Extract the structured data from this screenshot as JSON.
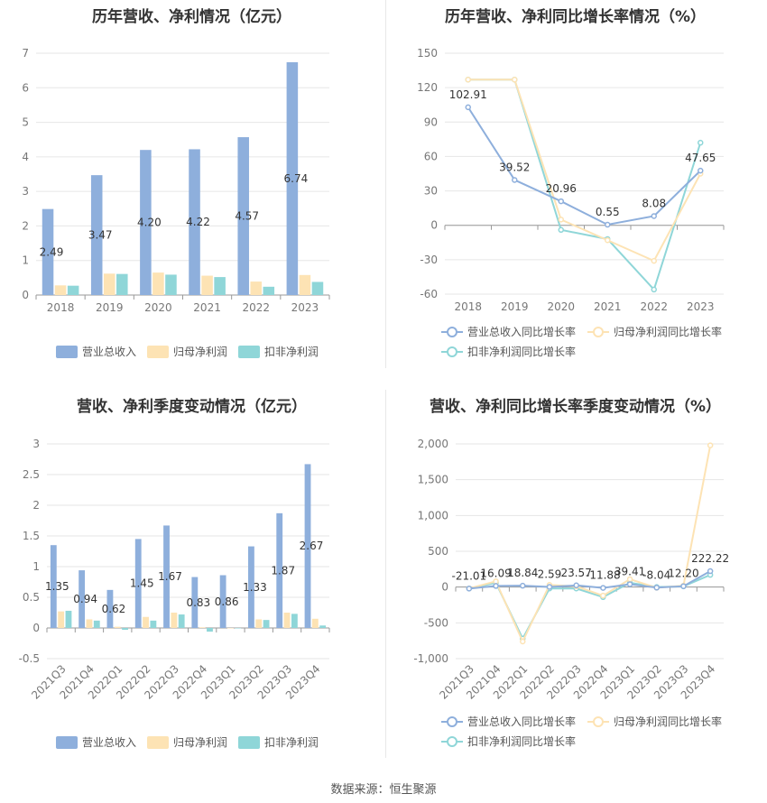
{
  "colors": {
    "revenue": "#8eafdc",
    "parent_profit": "#fde3b4",
    "deducted_profit": "#8fd6d8",
    "grid": "#e6e6e6",
    "axis_text": "#777777"
  },
  "footer": "数据来源：恒生聚源",
  "legend_bar": [
    "营业总收入",
    "归母净利润",
    "扣非净利润"
  ],
  "legend_line": [
    "营业总收入同比增长率",
    "归母净利润同比增长率",
    "扣非净利润同比增长率"
  ],
  "chart_data": [
    {
      "type": "bar",
      "title": "历年营收、净利情况（亿元）",
      "categories": [
        "2018",
        "2019",
        "2020",
        "2021",
        "2022",
        "2023"
      ],
      "ylim": [
        0,
        7
      ],
      "yticks": [
        0,
        1,
        2,
        3,
        4,
        5,
        6,
        7
      ],
      "series": [
        {
          "name": "营业总收入",
          "values": [
            2.49,
            3.47,
            4.2,
            4.22,
            4.57,
            6.74
          ]
        },
        {
          "name": "归母净利润",
          "values": [
            0.28,
            0.62,
            0.65,
            0.56,
            0.39,
            0.58
          ]
        },
        {
          "name": "扣非净利润",
          "values": [
            0.27,
            0.61,
            0.59,
            0.52,
            0.24,
            0.38
          ]
        }
      ],
      "labels": [
        "2.49",
        "3.47",
        "4.20",
        "4.22",
        "4.57",
        "6.74"
      ]
    },
    {
      "type": "line",
      "title": "历年营收、净利同比增长率情况（%）",
      "categories": [
        "2018",
        "2019",
        "2020",
        "2021",
        "2022",
        "2023"
      ],
      "ylim": [
        -60,
        150
      ],
      "yticks": [
        -60,
        -30,
        0,
        30,
        60,
        90,
        120,
        150
      ],
      "series": [
        {
          "name": "营业总收入同比增长率",
          "values": [
            102.91,
            39.52,
            20.96,
            0.55,
            8.08,
            47.65
          ]
        },
        {
          "name": "归母净利润同比增长率",
          "values": [
            127,
            127,
            5,
            -13,
            -31,
            45
          ]
        },
        {
          "name": "扣非净利润同比增长率",
          "values": [
            127,
            127,
            -4,
            -12,
            -56,
            72
          ]
        }
      ],
      "labels": [
        "102.91",
        "39.52",
        "20.96",
        "0.55",
        "8.08",
        "47.65"
      ]
    },
    {
      "type": "bar",
      "title": "营收、净利季度变动情况（亿元）",
      "categories": [
        "2021Q3",
        "2021Q4",
        "2022Q1",
        "2022Q2",
        "2022Q3",
        "2022Q4",
        "2023Q1",
        "2023Q2",
        "2023Q3",
        "2023Q4"
      ],
      "ylim": [
        -0.5,
        3
      ],
      "yticks": [
        -0.5,
        0,
        0.5,
        1,
        1.5,
        2,
        2.5,
        3
      ],
      "series": [
        {
          "name": "营业总收入",
          "values": [
            1.35,
            0.94,
            0.62,
            1.45,
            1.67,
            0.83,
            0.86,
            1.33,
            1.87,
            2.67
          ]
        },
        {
          "name": "归母净利润",
          "values": [
            0.27,
            0.14,
            0.02,
            0.18,
            0.25,
            0.01,
            0.0,
            0.14,
            0.25,
            0.15
          ]
        },
        {
          "name": "扣非净利润",
          "values": [
            0.28,
            0.12,
            -0.03,
            0.12,
            0.22,
            -0.06,
            0.0,
            0.13,
            0.23,
            0.04
          ]
        }
      ],
      "labels": [
        "1.35",
        "0.94",
        "0.62",
        "1.45",
        "1.67",
        "0.83",
        "0.86",
        "1.33",
        "1.87",
        "2.67"
      ]
    },
    {
      "type": "line",
      "title": "营收、净利同比增长率季度变动情况（%）",
      "categories": [
        "2021Q3",
        "2021Q4",
        "2022Q1",
        "2022Q2",
        "2022Q3",
        "2022Q4",
        "2023Q1",
        "2023Q2",
        "2023Q3",
        "2023Q4"
      ],
      "ylim": [
        -1000,
        2000
      ],
      "yticks": [
        -1000,
        -500,
        0,
        500,
        1000,
        1500,
        2000
      ],
      "ytick_labels": [
        "-1,000",
        "-500",
        "0",
        "500",
        "1,000",
        "1,500",
        "2,000"
      ],
      "series": [
        {
          "name": "营业总收入同比增长率",
          "values": [
            -21.01,
            16.09,
            18.84,
            2.59,
            23.57,
            -11.88,
            39.41,
            -8.04,
            12.2,
            222.22
          ]
        },
        {
          "name": "归母净利润同比增长率",
          "values": [
            -20,
            80,
            -760,
            30,
            10,
            -120,
            110,
            -10,
            20,
            1980
          ]
        },
        {
          "name": "扣非净利润同比增长率",
          "values": [
            -20,
            60,
            -720,
            -20,
            -20,
            -140,
            60,
            0,
            10,
            170
          ]
        }
      ],
      "labels": [
        "-21.01",
        "16.09",
        "18.84",
        "2.59",
        "23.57",
        "-11.88",
        "39.41",
        "-8.04",
        "12.20",
        "222.22"
      ]
    }
  ]
}
